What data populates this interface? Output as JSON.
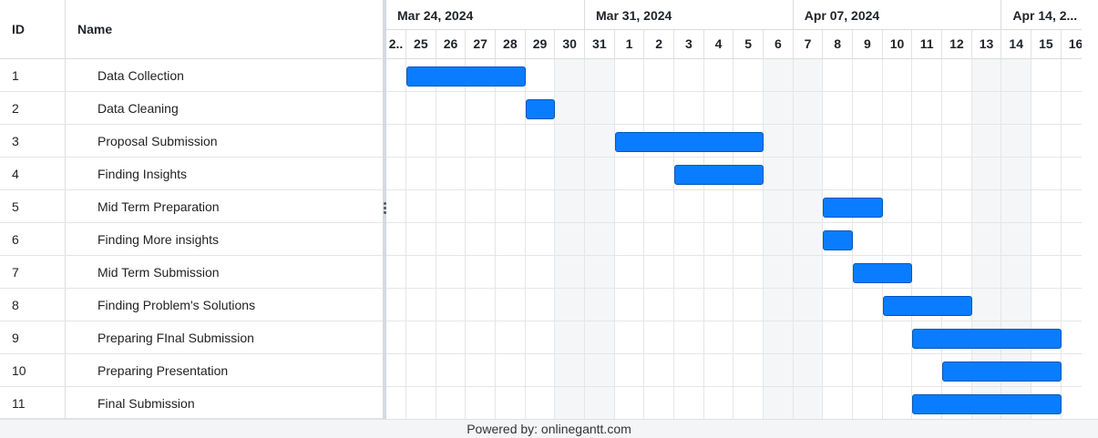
{
  "table": {
    "headers": {
      "id": "ID",
      "name": "Name"
    },
    "rows": [
      {
        "id": "1",
        "name": "Data Collection"
      },
      {
        "id": "2",
        "name": "Data Cleaning"
      },
      {
        "id": "3",
        "name": "Proposal Submission"
      },
      {
        "id": "4",
        "name": "Finding Insights"
      },
      {
        "id": "5",
        "name": "Mid Term Preparation"
      },
      {
        "id": "6",
        "name": "Finding More insights"
      },
      {
        "id": "7",
        "name": "Mid Term Submission"
      },
      {
        "id": "8",
        "name": "Finding Problem's Solutions"
      },
      {
        "id": "9",
        "name": "Preparing FInal Submission"
      },
      {
        "id": "10",
        "name": "Preparing Presentation"
      },
      {
        "id": "11",
        "name": "Final Submission"
      }
    ]
  },
  "timeline": {
    "months": [
      "Mar 24, 2024",
      "Mar 31, 2024",
      "Apr 07, 2024",
      "Apr 14, 2..."
    ],
    "days": [
      "2..",
      "25",
      "26",
      "27",
      "28",
      "29",
      "30",
      "31",
      "1",
      "2",
      "3",
      "4",
      "5",
      "6",
      "7",
      "8",
      "9",
      "10",
      "11",
      "12",
      "13",
      "14",
      "15",
      "16"
    ],
    "weekend_day_indices": [
      6,
      7,
      13,
      14,
      20,
      21
    ]
  },
  "tasks": [
    {
      "start": "2024-03-25",
      "end": "2024-03-28"
    },
    {
      "start": "2024-03-29",
      "end": "2024-03-29"
    },
    {
      "start": "2024-04-01",
      "end": "2024-04-05"
    },
    {
      "start": "2024-04-03",
      "end": "2024-04-05"
    },
    {
      "start": "2024-04-08",
      "end": "2024-04-09"
    },
    {
      "start": "2024-04-08",
      "end": "2024-04-08"
    },
    {
      "start": "2024-04-09",
      "end": "2024-04-10"
    },
    {
      "start": "2024-04-10",
      "end": "2024-04-12"
    },
    {
      "start": "2024-04-11",
      "end": "2024-04-15"
    },
    {
      "start": "2024-04-12",
      "end": "2024-04-15"
    },
    {
      "start": "2024-04-11",
      "end": "2024-04-15"
    }
  ],
  "colors": {
    "bar": "#0a7cff",
    "bar_border": "#0557b8",
    "weekend": "#f5f6f8"
  },
  "footer": {
    "text": "Powered by: onlinegantt.com"
  }
}
